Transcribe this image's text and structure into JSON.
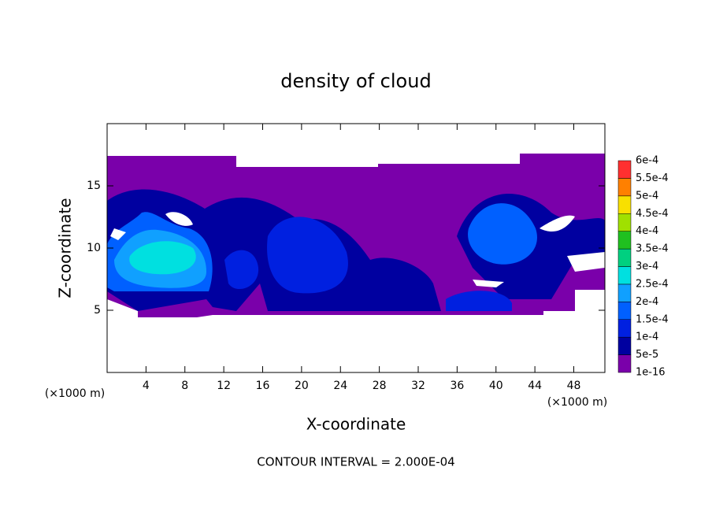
{
  "chart_data": {
    "type": "contour",
    "title": "density of cloud",
    "x_label": "X-coordinate",
    "y_label": "Z-coordinate",
    "x_unit_label": "(×1000 m)",
    "annotation": "CONTOUR INTERVAL = 2.000E-04",
    "xlim": [
      0,
      51.2
    ],
    "ylim": [
      0,
      20
    ],
    "xticks": [
      4,
      8,
      12,
      16,
      20,
      24,
      28,
      32,
      36,
      40,
      44,
      48
    ],
    "yticks": [
      5,
      10,
      15
    ],
    "colorbar": {
      "levels": [
        {
          "value": 1e-16,
          "label": "1e-16"
        },
        {
          "value": 5e-05,
          "label": "5e-5"
        },
        {
          "value": 0.0001,
          "label": "1e-4"
        },
        {
          "value": 0.00015,
          "label": "1.5e-4"
        },
        {
          "value": 0.0002,
          "label": "2e-4"
        },
        {
          "value": 0.00025,
          "label": "2.5e-4"
        },
        {
          "value": 0.0003,
          "label": "3e-4"
        },
        {
          "value": 0.00035,
          "label": "3.5e-4"
        },
        {
          "value": 0.0004,
          "label": "4e-4"
        },
        {
          "value": 0.00045,
          "label": "4.5e-4"
        },
        {
          "value": 0.0005,
          "label": "5e-4"
        },
        {
          "value": 0.00055,
          "label": "5.5e-4"
        },
        {
          "value": 0.0006,
          "label": "6e-4"
        }
      ],
      "colors": [
        "#7a00aa",
        "#0000a0",
        "#0020e0",
        "#0060ff",
        "#10a0ff",
        "#00e0e0",
        "#00d080",
        "#20c020",
        "#a0e000",
        "#f8e000",
        "#ff8000",
        "#ff3030"
      ]
    }
  }
}
